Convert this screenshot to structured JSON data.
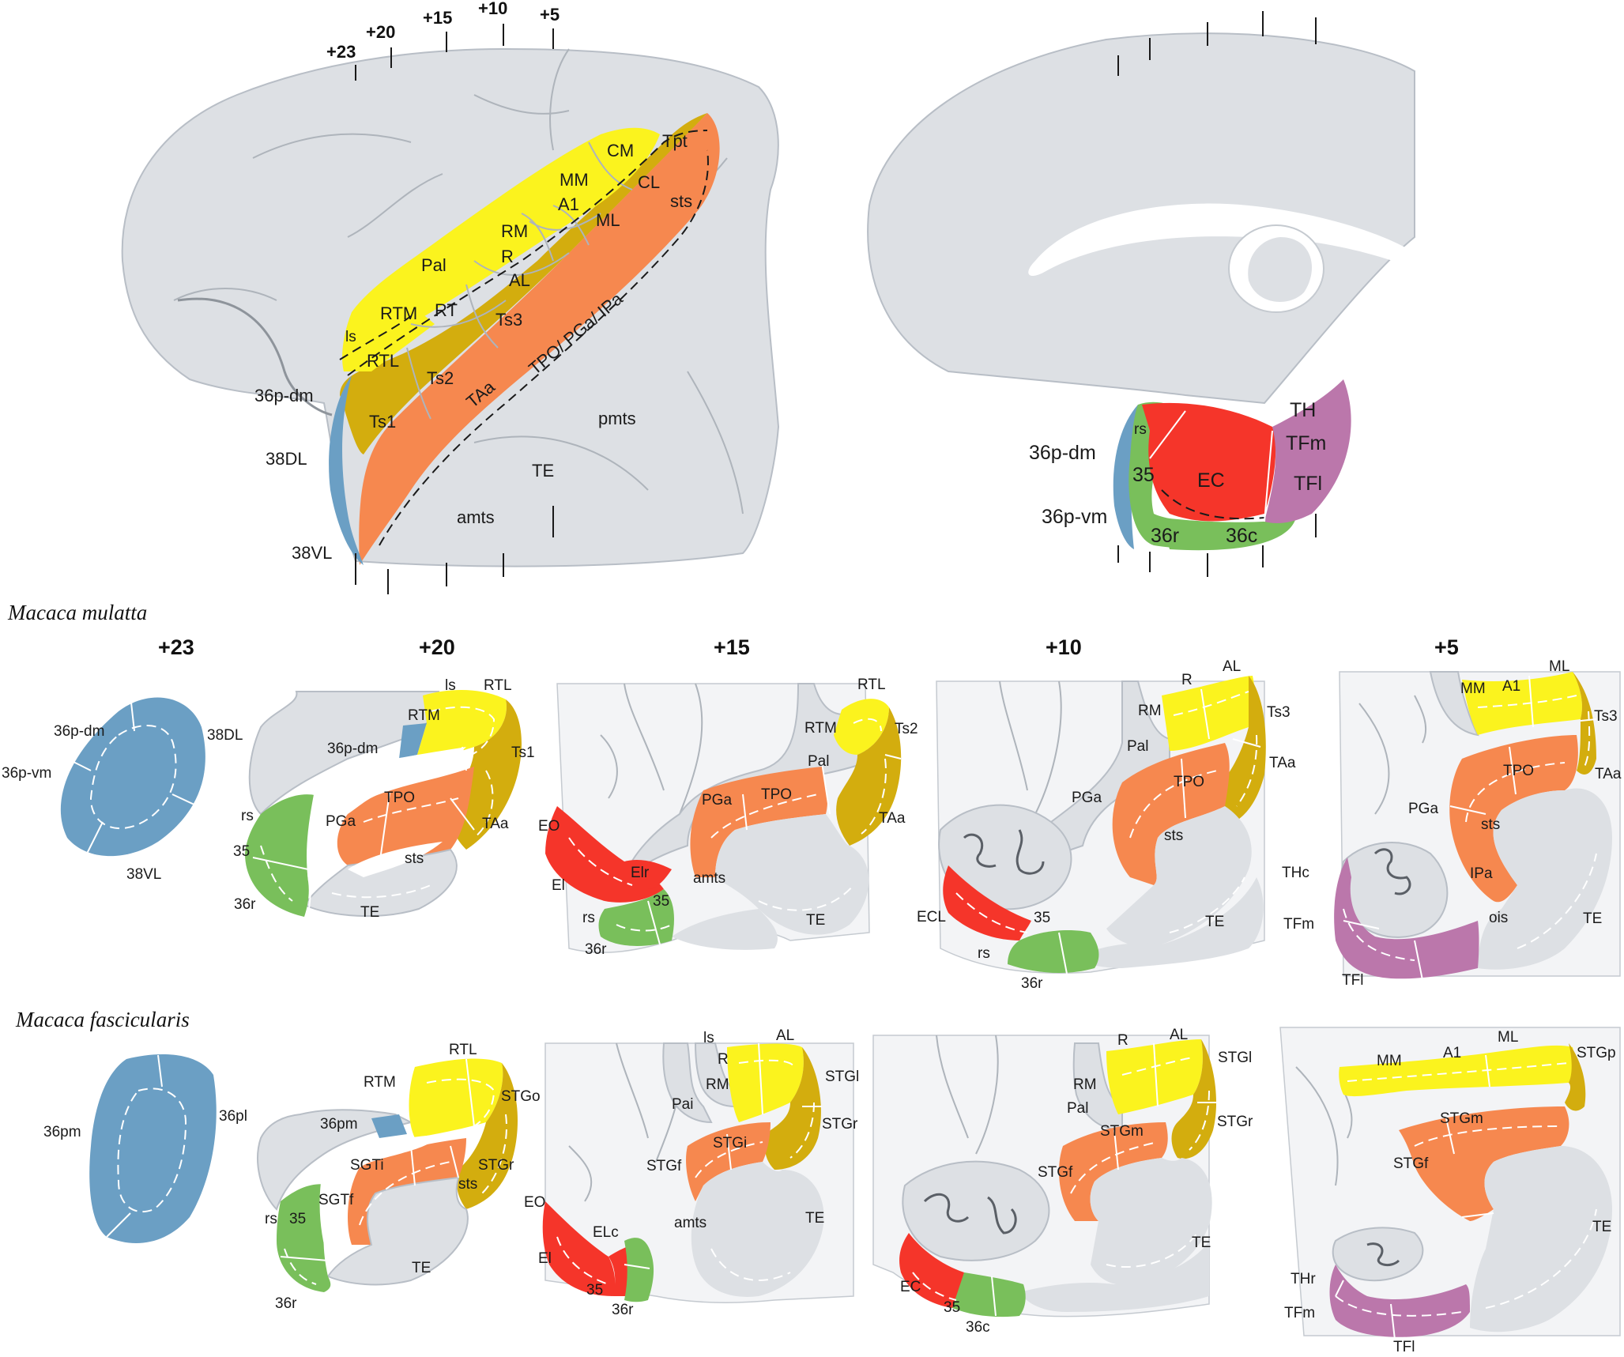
{
  "colors": {
    "yellow": "#fbf31e",
    "olive": "#d3ad0e",
    "orange": "#f6884f",
    "blue": "#6b9fc4",
    "green": "#79bf5b",
    "red": "#f5352a",
    "purple": "#bb77ab",
    "gray": "#dde0e4"
  },
  "lateral": {
    "ticks": [
      "+23",
      "+20",
      "+15",
      "+10",
      "+5"
    ],
    "labels": {
      "cm": "CM",
      "tpt": "Tpt",
      "mm": "MM",
      "cl": "CL",
      "a1": "A1",
      "ml": "ML",
      "sts": "sts",
      "rm": "RM",
      "r": "R",
      "pal": "Pal",
      "al": "AL",
      "rtm": "RTM",
      "rt": "RT",
      "ts3": "Ts3",
      "ls": "ls",
      "rtl": "RTL",
      "tpo": "TPO/ PGa/ IPa",
      "ts2": "Ts2",
      "p36dm": "36p-dm",
      "taa": "TAa",
      "ts1": "Ts1",
      "pmts": "pmts",
      "dl38": "38DL",
      "te": "TE",
      "amts": "amts",
      "vl38": "38VL"
    }
  },
  "medial": {
    "labels": {
      "th": "TH",
      "rs": "rs",
      "tfm": "TFm",
      "p36dm": "36p-dm",
      "a35": "35",
      "ec": "EC",
      "tfl": "TFl",
      "p36vm": "36p-vm",
      "r36": "36r",
      "c36": "36c"
    }
  },
  "species": {
    "mulatta": "Macaca mulatta",
    "fascicularis": "Macaca fascicularis"
  },
  "sections": [
    "+23",
    "+20",
    "+15",
    "+10",
    "+5"
  ],
  "mulatta": {
    "s23": {
      "dm": "36p-dm",
      "dl": "38DL",
      "vm": "36p-vm",
      "vl": "38VL"
    },
    "s20": {
      "ls": "ls",
      "rtl": "RTL",
      "rtm": "RTM",
      "p36dm": "36p-dm",
      "ts1": "Ts1",
      "tpo": "TPO",
      "rs": "rs",
      "pga": "PGa",
      "taa": "TAa",
      "a35": "35",
      "sts": "sts",
      "r36": "36r",
      "te": "TE"
    },
    "s15": {
      "rtl": "RTL",
      "rtm": "RTM",
      "ts2": "Ts2",
      "pal": "Pal",
      "tpo": "TPO",
      "pga": "PGa",
      "taa": "TAa",
      "eo": "EO",
      "elr": "Elr",
      "amts": "amts",
      "el": "El",
      "rs": "rs",
      "a35": "35",
      "te": "TE",
      "r36": "36r"
    },
    "s10": {
      "r": "R",
      "al": "AL",
      "rm": "RM",
      "ts3": "Ts3",
      "pal": "Pal",
      "taa": "TAa",
      "tpo": "TPO",
      "pga": "PGa",
      "sts": "sts",
      "a35": "35",
      "te": "TE",
      "ecl": "ECL",
      "rs": "rs",
      "r36": "36r"
    },
    "s5": {
      "ml": "ML",
      "mm": "MM",
      "a1": "A1",
      "ts3": "Ts3",
      "taa": "TAa",
      "tpo": "TPO",
      "pga": "PGa",
      "sts": "sts",
      "thc": "THc",
      "ipa": "IPa",
      "te": "TE",
      "tfm": "TFm",
      "ois": "ois",
      "tfl": "TFl"
    }
  },
  "fascicularis": {
    "s23": {
      "pm": "36pm",
      "pl": "36pl"
    },
    "s20": {
      "rtl": "RTL",
      "rtm": "RTM",
      "stgo": "STGo",
      "p36pm": "36pm",
      "sgti": "SGTi",
      "stgr": "STGr",
      "sts": "sts",
      "sgtf": "SGTf",
      "rs": "rs",
      "a35": "35",
      "te": "TE",
      "r36": "36r"
    },
    "s15": {
      "ls": "ls",
      "al": "AL",
      "r": "R",
      "stgl": "STGl",
      "rm": "RM",
      "pai": "Pai",
      "stgr": "STGr",
      "stgi": "STGi",
      "stgf": "STGf",
      "eo": "EO",
      "amts": "amts",
      "te": "TE",
      "elc": "ELc",
      "el": "El",
      "a35": "35",
      "r36": "36r"
    },
    "s10": {
      "r": "R",
      "al": "AL",
      "stgl": "STGl",
      "rm": "RM",
      "pal": "Pal",
      "stgr": "STGr",
      "stgm": "STGm",
      "stgf": "STGf",
      "te": "TE",
      "ec": "EC",
      "a35": "35",
      "c36": "36c"
    },
    "s5": {
      "mm": "MM",
      "a1": "A1",
      "ml": "ML",
      "stgp": "STGp",
      "stgm": "STGm",
      "stgf": "STGf",
      "te": "TE",
      "thr": "THr",
      "tfm": "TFm",
      "tfl": "TFl"
    }
  }
}
